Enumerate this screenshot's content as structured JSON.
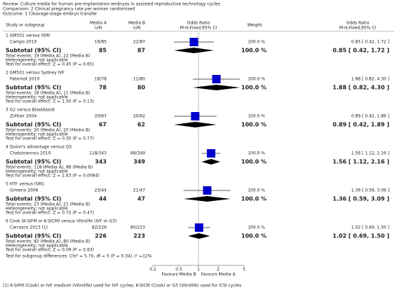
{
  "header": {
    "review": "Review:  Culture media for human pre-implantation embryos in assisted reproductive technology cycles",
    "comparison": "Comparison:  2 Clinical pregnancy rate per woman randomised",
    "outcome": "Outcome:  1 Cleavage-stage embryo transfer"
  },
  "columns": {
    "study": "Study or subgroup",
    "a": "Media A",
    "a_sub": "n/N",
    "b": "Media B",
    "b_sub": "n/N",
    "plot": "Odds Ratio",
    "plot_sub": "M-H,Fixed,95% CI",
    "weight": "Weight",
    "or": "Odds Ratio",
    "or_sub": "M-H,Fixed,95% CI"
  },
  "chart_data": {
    "type": "forest",
    "xscale": "log",
    "xlim": [
      0.2,
      5
    ],
    "xticks": [
      0.2,
      0.5,
      1,
      2,
      5
    ],
    "left_label": "Favours Media B",
    "right_label": "Favours Media A",
    "color": "#0000cc",
    "groups": [
      {
        "title": "1 GM501 versus ISMI",
        "study": {
          "name": "Campo 2010",
          "a": "19/85",
          "b": "22/87",
          "weight": "100.0 %",
          "label": "0.85 [ 0.42, 1.72 ]",
          "or": 0.85,
          "lo": 0.42,
          "hi": 1.72
        },
        "subtotal": {
          "name": "Subtotal (95% CI)",
          "a": 85,
          "b": 87,
          "weight": "100.0 %",
          "label": "0.85 [ 0.42, 1.72 ]",
          "or": 0.85,
          "lo": 0.42,
          "hi": 1.72
        },
        "notes": [
          "Total events: 19 (Media A), 22 (Media B)",
          "Heterogeneity: not applicable",
          "Test for overall effect: Z = 0.45 (P = 0.65)"
        ]
      },
      {
        "title": "2 GM501 versus Sydney IVF",
        "study": {
          "name": "Paternot 2010",
          "a": "18/78",
          "b": "11/80",
          "weight": "100.0 %",
          "label": "1.88 [ 0.82, 4.30 ]",
          "or": 1.88,
          "lo": 0.82,
          "hi": 4.3
        },
        "subtotal": {
          "name": "Subtotal (95% CI)",
          "a": 78,
          "b": 80,
          "weight": "100.0 %",
          "label": "1.88 [ 0.82, 4.30 ]",
          "or": 1.88,
          "lo": 0.82,
          "hi": 4.3
        },
        "notes": [
          "Total events: 18 (Media A), 11 (Media B)",
          "Heterogeneity: not applicable",
          "Test for overall effect: Z = 1.50 (P = 0.13)"
        ]
      },
      {
        "title": "3 G2 versus BlastAssist",
        "study": {
          "name": "Zollner 2004",
          "a": "20/67",
          "b": "20/62",
          "weight": "100.0 %",
          "label": "0.89 [ 0.42, 1.89 ]",
          "or": 0.89,
          "lo": 0.42,
          "hi": 1.89
        },
        "subtotal": {
          "name": "Subtotal (95% CI)",
          "a": 67,
          "b": 62,
          "weight": "100.0 %",
          "label": "0.89 [ 0.42, 1.89 ]",
          "or": 0.89,
          "lo": 0.42,
          "hi": 1.89
        },
        "notes": [
          "Total events: 20 (Media A), 20 (Media B)",
          "Heterogeneity: not applicable",
          "Test for overall effect: Z = 0.30 (P = 0.77)"
        ]
      },
      {
        "title": "4 Quinn's advantage versus G5",
        "study": {
          "name": "Chatzioannou 2010",
          "a": "118/343",
          "b": "88/349",
          "weight": "100.0 %",
          "label": "1.56 [ 1.12, 2.16 ]",
          "or": 1.56,
          "lo": 1.12,
          "hi": 2.16
        },
        "subtotal": {
          "name": "Subtotal (95% CI)",
          "a": 343,
          "b": 349,
          "weight": "100.0 %",
          "label": "1.56 [ 1.12, 2.16 ]",
          "or": 1.56,
          "lo": 1.12,
          "hi": 2.16
        },
        "notes": [
          "Total events: 118 (Media A), 88 (Media B)",
          "Heterogeneity: not applicable",
          "Test for overall effect: Z = 2.63 (P = 0.0084)"
        ]
      },
      {
        "title": "5 HTF versus ISM1",
        "study": {
          "name": "Gimeno 2006",
          "a": "23/44",
          "b": "21/47",
          "weight": "100.0 %",
          "label": "1.36 [ 0.59, 3.09 ]",
          "or": 1.36,
          "lo": 0.59,
          "hi": 3.09
        },
        "subtotal": {
          "name": "Subtotal (95% CI)",
          "a": 44,
          "b": 47,
          "weight": "100.0 %",
          "label": "1.36 [ 0.59, 3.09 ]",
          "or": 1.36,
          "lo": 0.59,
          "hi": 3.09
        },
        "notes": [
          "Total events: 23 (Media A), 21 (Media B)",
          "Heterogeneity: not applicable",
          "Test for overall effect: Z = 0.72 (P = 0.47)"
        ]
      },
      {
        "title": "6 Cook (K-SIFM or K-SICM) versus Vitrolife (IVF or G3)",
        "study": {
          "name": "Carrasco 2013 (1)",
          "a": "82/226",
          "b": "80/223",
          "weight": "100.0 %",
          "label": "1.02 [ 0.69, 1.50 ]",
          "or": 1.02,
          "lo": 0.69,
          "hi": 1.5
        },
        "subtotal": {
          "name": "Subtotal (95% CI)",
          "a": 226,
          "b": 223,
          "weight": "100.0 %",
          "label": "1.02 [ 0.69, 1.50 ]",
          "or": 1.02,
          "lo": 0.69,
          "hi": 1.5
        },
        "notes": [
          "Total events: 82 (Media A), 80 (Media B)",
          "Heterogeneity: not applicable",
          "Test for overall effect: Z = 0.09 (P = 0.93)"
        ]
      }
    ],
    "overall": "Test for subgroup differences: Chi² = 5.70, df = 5 (P = 0.34), I² =12%"
  },
  "footnote": "(1) K-SIFM (Cook) or IVF medium (Vitrolife) used for IVF cycles; K-SICM (Cook) or G3 (Vitrolife) used for ICSI cycles"
}
